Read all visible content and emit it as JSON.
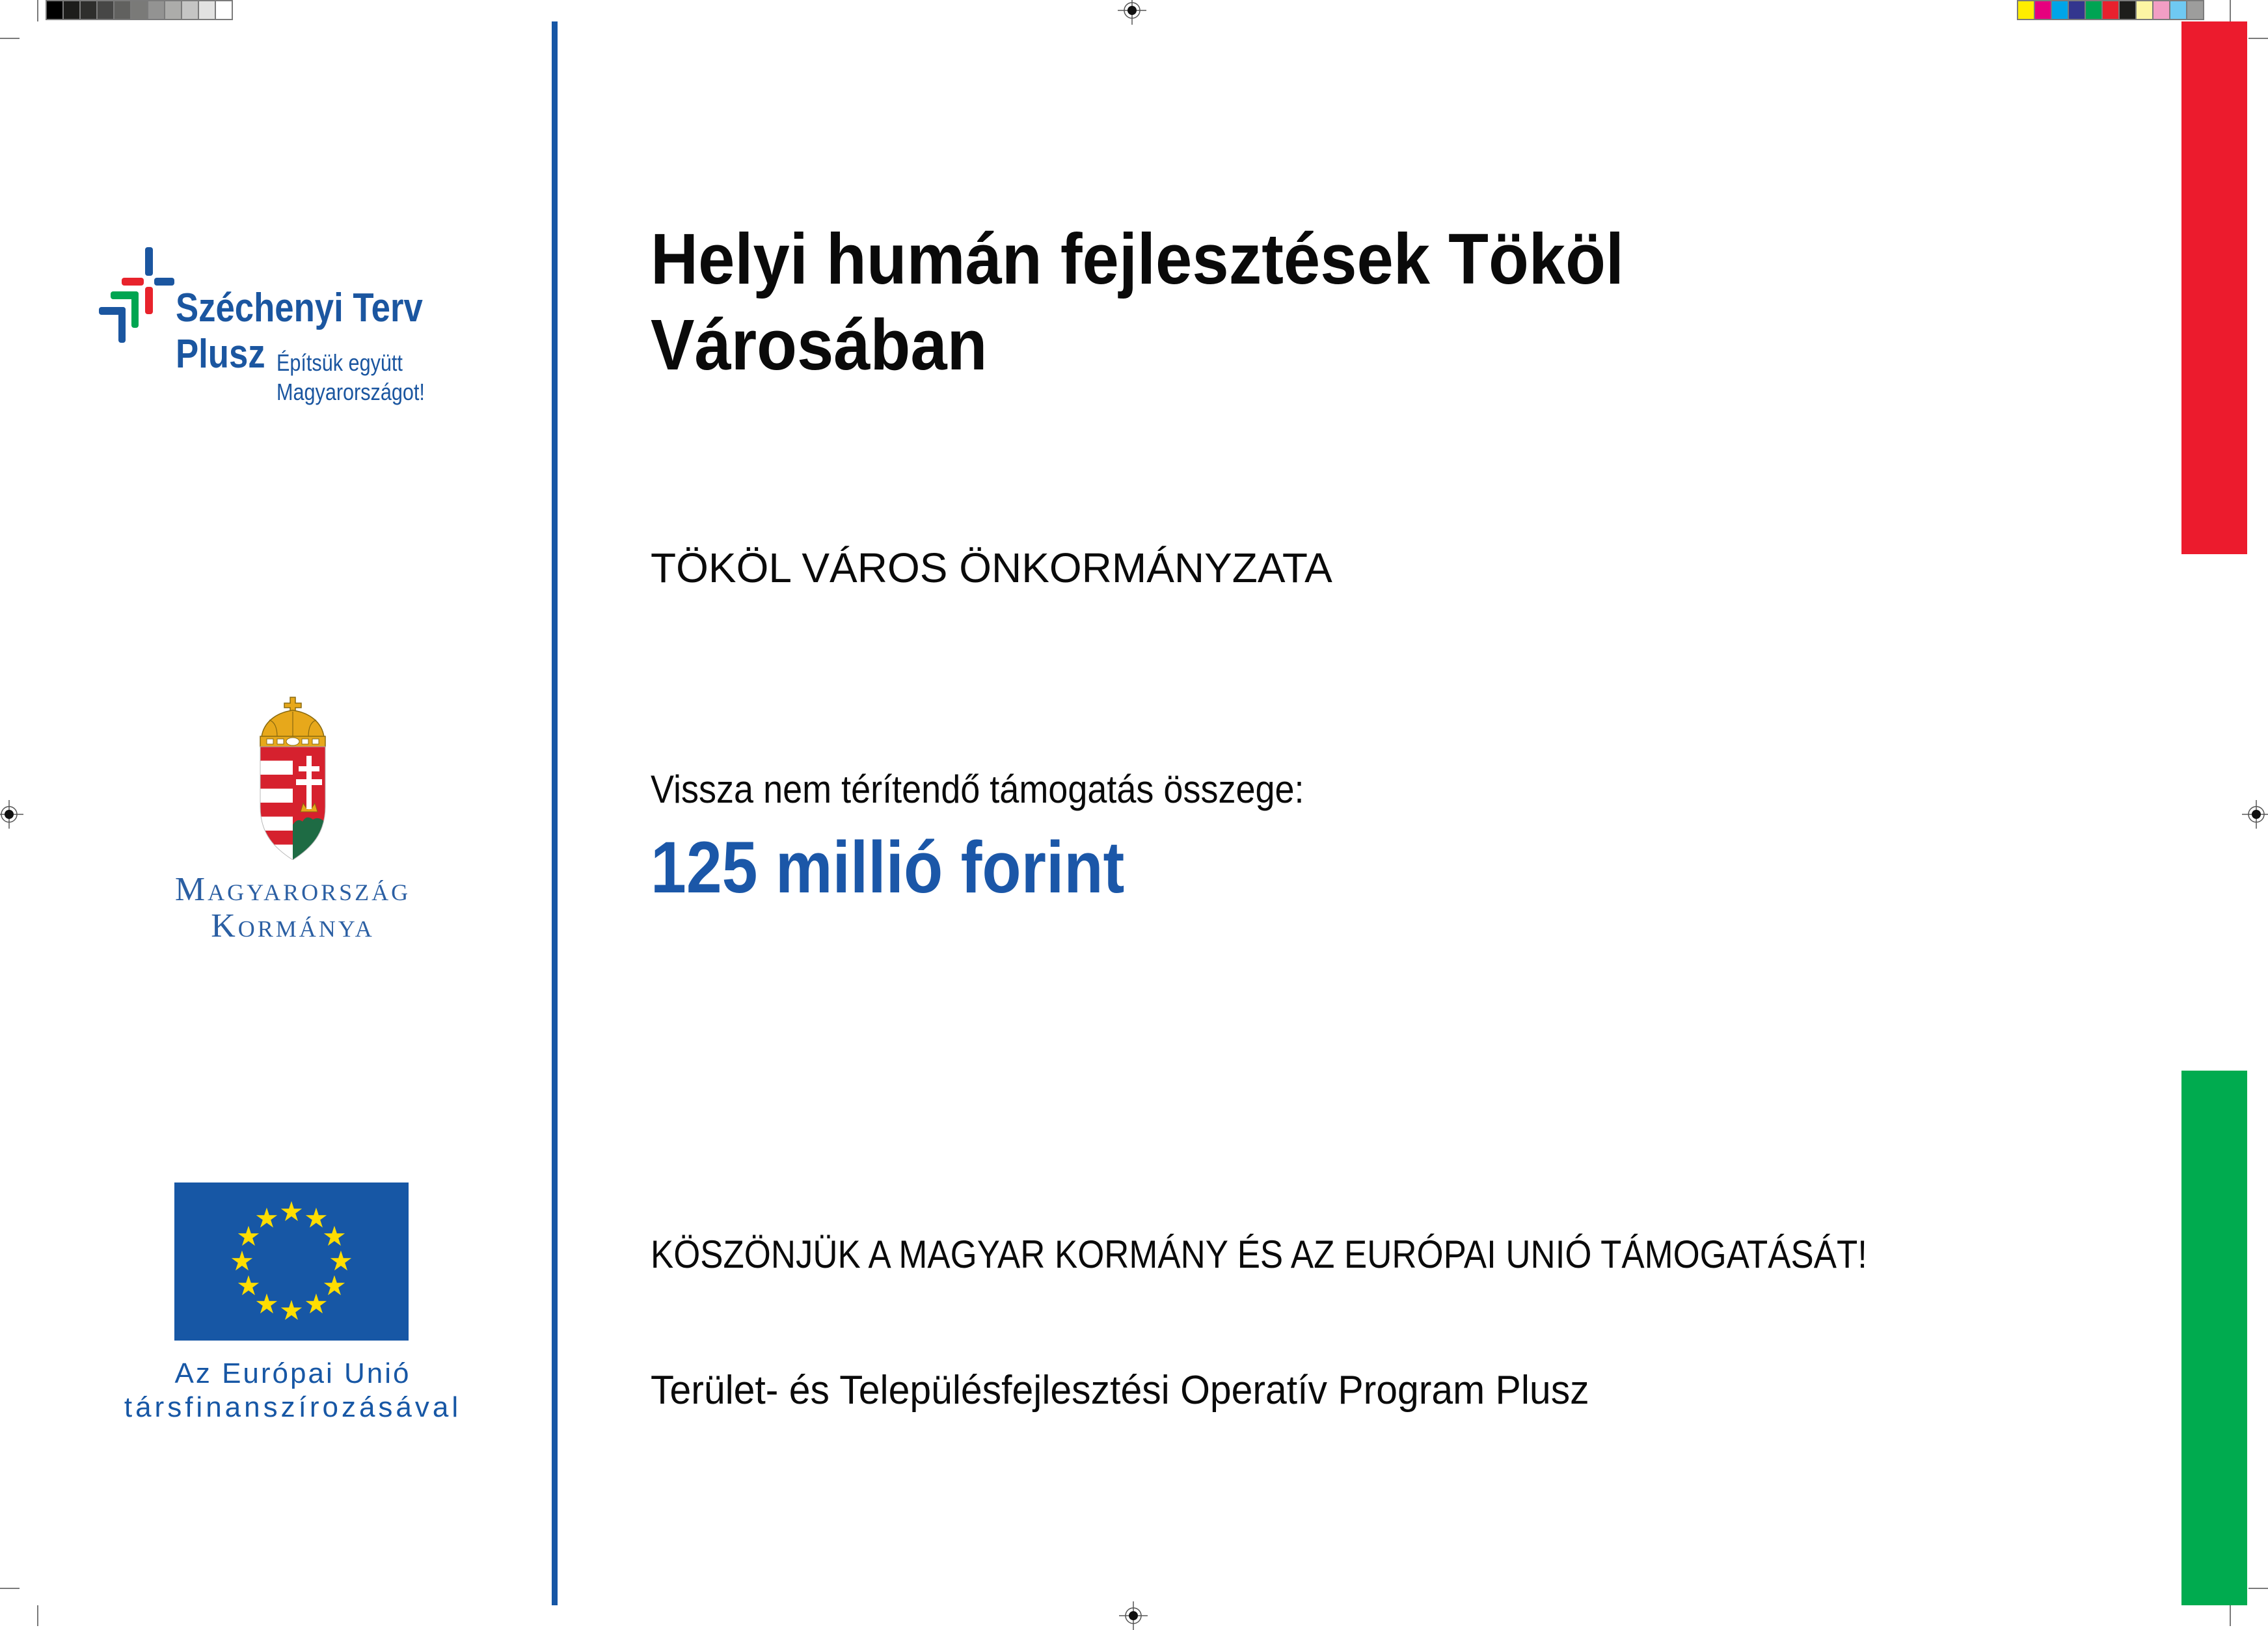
{
  "billboard": {
    "project_title_line1": "Helyi humán fejlesztések Tököl",
    "project_title_line2": "Városában",
    "beneficiary": "TÖKÖL VÁROS ÖNKORMÁNYZATA",
    "grant_label": "Vissza nem térítendő támogatás összege:",
    "grant_amount": "125 millió forint",
    "thanks_message": "KÖSZÖNJÜK A MAGYAR KORMÁNY ÉS AZ EURÓPAI UNIÓ TÁMOGATÁSÁT!",
    "program_name": "Terület- és Településfejlesztési Operatív Program Plusz"
  },
  "logos": {
    "szechenyi_terv_plusz": {
      "name_line1": "Széchenyi Terv",
      "name_line2": "Plusz",
      "slogan_line1": "Építsük együtt",
      "slogan_line2": "Magyarországot!"
    },
    "hungarian_government": {
      "line1": "Magyarország",
      "line2": "Kormánya"
    },
    "eu_cofinancing": {
      "line1": "Az Európai Unió",
      "line2": "társfinanszírozásával",
      "star_char": "★"
    }
  },
  "print_marks": {
    "grayscale_swatches": [
      "#000000",
      "#1d1d1b",
      "#2e2e2c",
      "#474746",
      "#61615f",
      "#7a7a78",
      "#939392",
      "#acacaa",
      "#c5c5c4",
      "#e2e2e1",
      "#ffffff"
    ],
    "color_swatches": [
      "#ffed00",
      "#e6007e",
      "#00a5e8",
      "#33368e",
      "#00a453",
      "#e8212e",
      "#1d1d1b",
      "#fdf5a3",
      "#f29ec4",
      "#6fc9f2",
      "#9d9d9c"
    ]
  },
  "colors": {
    "accent_blue": "#1656a5",
    "amount_blue": "#1b57a8",
    "red_bar": "#ec1b2d",
    "green_bar": "#00ab4f",
    "eu_flag_blue": "#1757a5",
    "eu_star_yellow": "#ffdd00"
  }
}
